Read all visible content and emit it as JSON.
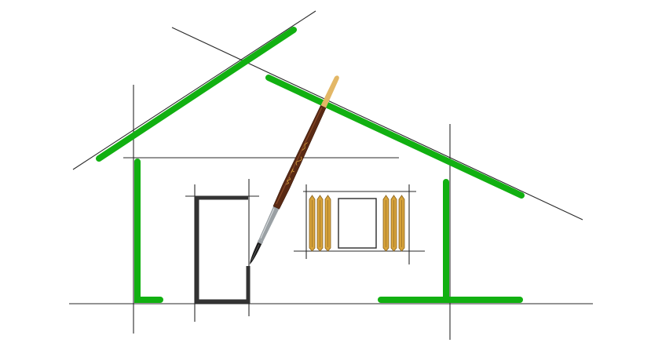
{
  "illustration": {
    "subject": "house-sketch-with-paintbrush",
    "colors": {
      "background": "#ffffff",
      "guide_line": "#2a2a2a",
      "green_stroke": "#11b011",
      "door": "#333333",
      "shutter": "#d6a23a",
      "shutter_line": "#8a6420",
      "brush_handle": "#5a2a14",
      "brush_handle_dark": "#3a180a",
      "brush_tip": "#e3b766",
      "brush_ferrule": "#9aa0a4",
      "brush_bristles": "#1c1c1c"
    }
  }
}
